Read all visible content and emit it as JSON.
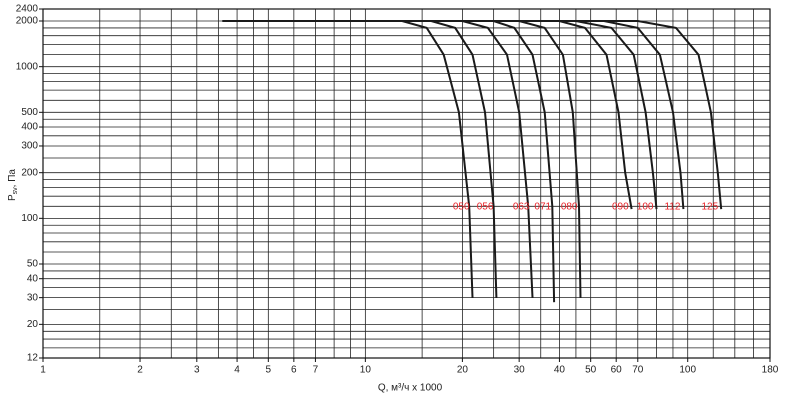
{
  "chart_data": {
    "type": "line",
    "x_label": "Q, м³/ч x 1000",
    "y_label": {
      "main": "P",
      "sub": "sv",
      "unit": ", Па"
    },
    "xlog": true,
    "ylog": true,
    "grid": true,
    "xlim": [
      1,
      180
    ],
    "ylim": [
      12,
      2400
    ],
    "xticks": [
      1,
      2,
      3,
      4,
      5,
      6,
      7,
      10,
      20,
      30,
      40,
      50,
      60,
      70,
      100,
      180
    ],
    "yticks": [
      12,
      20,
      30,
      40,
      50,
      100,
      200,
      300,
      400,
      500,
      1000,
      2000,
      2400
    ],
    "xgrid": [
      1,
      1.5,
      2,
      2.5,
      3,
      3.5,
      4,
      4.5,
      5,
      6,
      7,
      8,
      9,
      10,
      15,
      20,
      25,
      30,
      35,
      40,
      45,
      50,
      60,
      70,
      80,
      90,
      100,
      120,
      140,
      160,
      180
    ],
    "ygrid": [
      12,
      14,
      16,
      18,
      20,
      25,
      30,
      35,
      40,
      45,
      50,
      60,
      70,
      80,
      90,
      100,
      120,
      140,
      160,
      180,
      200,
      250,
      300,
      350,
      400,
      450,
      500,
      600,
      700,
      800,
      900,
      1000,
      1200,
      1400,
      1600,
      1800,
      2000,
      2400
    ],
    "line_color": "#1a1a1a",
    "label_color": "#e8252b",
    "series": [
      {
        "label": "050",
        "x": [
          3.6,
          13,
          15.5,
          17.5,
          19.5,
          21,
          21.5
        ],
        "y": [
          2000,
          2000,
          1800,
          1200,
          500,
          120,
          30
        ]
      },
      {
        "label": "056",
        "x": [
          5.9,
          16,
          19,
          21.5,
          23.5,
          25,
          25.5
        ],
        "y": [
          2000,
          2000,
          1800,
          1200,
          500,
          120,
          30
        ]
      },
      {
        "label": "063",
        "x": [
          8,
          20,
          24,
          27.5,
          30,
          32,
          33
        ],
        "y": [
          2000,
          2000,
          1800,
          1200,
          500,
          120,
          30
        ]
      },
      {
        "label": "071",
        "x": [
          9.5,
          25,
          29,
          33,
          36,
          38,
          38.5
        ],
        "y": [
          2000,
          2000,
          1800,
          1200,
          500,
          120,
          28
        ]
      },
      {
        "label": "080",
        "x": [
          11,
          30,
          36,
          41,
          44,
          46,
          46.5
        ],
        "y": [
          2000,
          2000,
          1800,
          1200,
          500,
          120,
          30
        ]
      },
      {
        "label": "090",
        "x": [
          13,
          40,
          48,
          56,
          61,
          64,
          67
        ],
        "y": [
          2000,
          2000,
          1800,
          1200,
          500,
          200,
          115
        ]
      },
      {
        "label": "100",
        "x": [
          15,
          45,
          58,
          68,
          74,
          78,
          80
        ],
        "y": [
          2000,
          2000,
          1800,
          1200,
          500,
          200,
          115
        ]
      },
      {
        "label": "112",
        "x": [
          17,
          55,
          70,
          82,
          90,
          95,
          97
        ],
        "y": [
          2000,
          2000,
          1800,
          1200,
          500,
          200,
          115
        ]
      },
      {
        "label": "125",
        "x": [
          20,
          70,
          92,
          108,
          118,
          124,
          127
        ],
        "y": [
          2000,
          2000,
          1800,
          1200,
          500,
          200,
          115
        ]
      }
    ]
  }
}
